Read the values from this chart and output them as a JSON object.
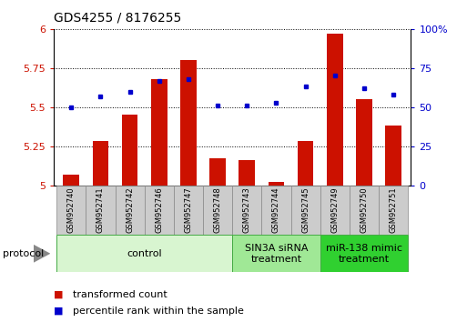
{
  "title": "GDS4255 / 8176255",
  "samples": [
    "GSM952740",
    "GSM952741",
    "GSM952742",
    "GSM952746",
    "GSM952747",
    "GSM952748",
    "GSM952743",
    "GSM952744",
    "GSM952745",
    "GSM952749",
    "GSM952750",
    "GSM952751"
  ],
  "red_values": [
    5.07,
    5.28,
    5.45,
    5.68,
    5.8,
    5.17,
    5.16,
    5.02,
    5.28,
    5.97,
    5.55,
    5.38
  ],
  "blue_values_pct": [
    50,
    57,
    60,
    67,
    68,
    51,
    51,
    53,
    63,
    70,
    62,
    58
  ],
  "ylim_left": [
    5.0,
    6.0
  ],
  "ylim_right": [
    0,
    100
  ],
  "yticks_left": [
    5.0,
    5.25,
    5.5,
    5.75,
    6.0
  ],
  "yticks_right": [
    0,
    25,
    50,
    75,
    100
  ],
  "ytick_labels_left": [
    "5",
    "5.25",
    "5.5",
    "5.75",
    "6"
  ],
  "ytick_labels_right": [
    "0",
    "25",
    "50",
    "75",
    "100%"
  ],
  "groups": [
    {
      "label": "control",
      "start": 0,
      "end": 6,
      "color": "#d8f5d0"
    },
    {
      "label": "SIN3A siRNA\ntreatment",
      "start": 6,
      "end": 9,
      "color": "#a0e896"
    },
    {
      "label": "miR-138 mimic\ntreatment",
      "start": 9,
      "end": 12,
      "color": "#30d030"
    }
  ],
  "legend_items": [
    {
      "label": "transformed count",
      "color": "#cc1100"
    },
    {
      "label": "percentile rank within the sample",
      "color": "#0000cc"
    }
  ],
  "bar_color": "#cc1100",
  "dot_color": "#0000cc",
  "bar_width": 0.55,
  "protocol_label": "protocol",
  "title_fontsize": 10,
  "tick_fontsize": 8,
  "sample_fontsize": 6,
  "group_fontsize": 8,
  "legend_fontsize": 8
}
